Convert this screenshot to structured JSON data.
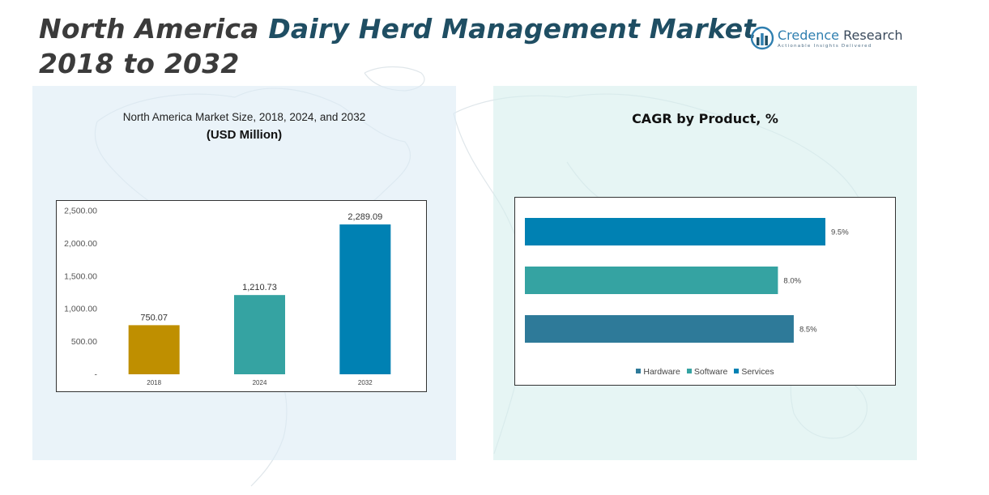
{
  "header": {
    "title_line1_part1": "North America ",
    "title_line1_part2": "Dairy Herd Management Market",
    "title_line2": "2018 to 2032"
  },
  "logo": {
    "name_first": "Credence",
    "name_second": " Research",
    "tagline": "Actionable Insights Delivered",
    "icon": "bar-chart-logo-icon"
  },
  "colors": {
    "accent": "#1f4e63",
    "bar_2018": "#bf8f00",
    "bar_2024": "#35a3a2",
    "bar_2032": "#0081b3",
    "hardware": "#2e7a99",
    "software": "#35a3a2",
    "services": "#0081b3"
  },
  "chart_data": [
    {
      "type": "bar",
      "title": "North America Market Size, 2018, 2024, and 2032",
      "subtitle": "(USD Million)",
      "categories": [
        "2018",
        "2024",
        "2032"
      ],
      "values": [
        750.07,
        1210.73,
        2289.09
      ],
      "value_labels": [
        "750.07",
        "1,210.73",
        "2,289.09"
      ],
      "ylim": [
        0,
        2500
      ],
      "y_ticks": [
        0,
        500,
        1000,
        1500,
        2000,
        2500
      ],
      "y_tick_labels": [
        "-",
        "500.00",
        "1,000.00",
        "1,500.00",
        "2,000.00",
        "2,500.00"
      ],
      "grid": false,
      "legend": "none"
    },
    {
      "type": "bar",
      "orientation": "horizontal",
      "title": "CAGR by Product, %",
      "series": [
        {
          "name": "Services",
          "value": 9.5,
          "label": "9.5%"
        },
        {
          "name": "Software",
          "value": 8.0,
          "label": "8.0%"
        },
        {
          "name": "Hardware",
          "value": 8.5,
          "label": "8.5%"
        }
      ],
      "legend_items": [
        "Hardware",
        "Software",
        "Services"
      ],
      "legend": "bottom",
      "grid": false
    }
  ]
}
